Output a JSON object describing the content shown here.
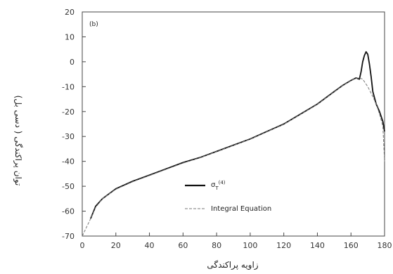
{
  "chart_data": {
    "type": "line",
    "panel_label": "(b)",
    "xlabel": "زاویه پراکندگی",
    "ylabel": "توان پراکندگی ( دسی بل)",
    "xlim": [
      0,
      180
    ],
    "ylim": [
      -70,
      20
    ],
    "xticks": [
      0,
      20,
      40,
      60,
      80,
      100,
      120,
      140,
      160,
      180
    ],
    "yticks": [
      20,
      10,
      0,
      -10,
      -20,
      -30,
      -40,
      -50,
      -60,
      -70
    ],
    "grid": false,
    "legend_position": "lower-center",
    "series": [
      {
        "name": "σ_T^(4)",
        "legend_text": "σ",
        "legend_sub": "T",
        "legend_sup": "(4)",
        "style": "solid",
        "color": "#111111",
        "x": [
          5,
          8,
          12,
          20,
          30,
          40,
          50,
          60,
          70,
          80,
          90,
          100,
          110,
          120,
          130,
          140,
          150,
          155,
          160,
          163,
          165,
          166,
          167,
          168,
          169,
          170,
          171,
          172,
          173,
          175,
          177,
          179,
          180
        ],
        "y": [
          -63,
          -58,
          -55,
          -51,
          -48,
          -45.5,
          -43,
          -40.5,
          -38.5,
          -36,
          -33.5,
          -31,
          -28,
          -25,
          -21,
          -17,
          -12,
          -9.5,
          -7.5,
          -6.5,
          -7,
          -4,
          0,
          2.5,
          4,
          3,
          -1,
          -6,
          -12,
          -17,
          -20,
          -24,
          -28
        ]
      },
      {
        "name": "Integral Equation",
        "style": "dashed",
        "color": "#777777",
        "x": [
          0,
          5,
          8,
          12,
          20,
          30,
          40,
          50,
          60,
          70,
          80,
          90,
          100,
          110,
          120,
          130,
          140,
          150,
          155,
          160,
          163,
          165,
          167,
          170,
          173,
          175,
          177,
          179,
          180
        ],
        "y": [
          -70,
          -63,
          -58.5,
          -55,
          -51.2,
          -48.2,
          -45.7,
          -43.2,
          -40.7,
          -38.6,
          -36.1,
          -33.6,
          -31.1,
          -28.1,
          -25.1,
          -21.1,
          -17.1,
          -12.1,
          -9.6,
          -7.6,
          -6.6,
          -6.5,
          -7,
          -10,
          -14,
          -17,
          -21,
          -26,
          -40
        ]
      }
    ]
  }
}
